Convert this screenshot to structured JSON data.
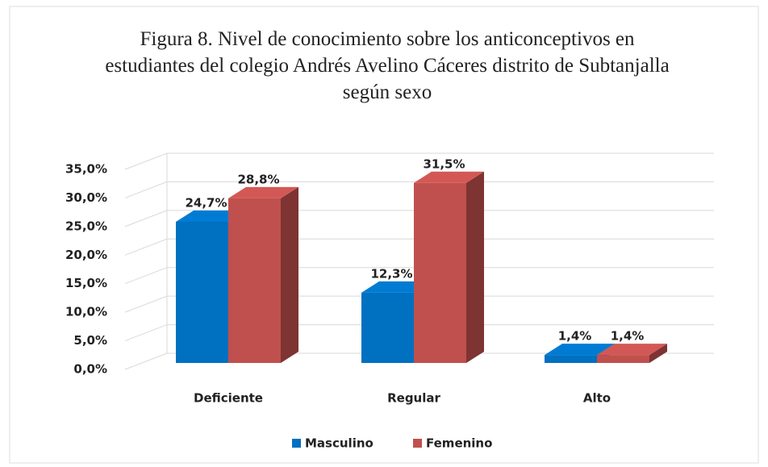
{
  "chart_data": {
    "type": "bar3d",
    "title": "Figura 8. Nivel de conocimiento sobre los anticonceptivos en estudiantes del colegio Andrés Avelino Cáceres distrito de Subtanjalla según sexo",
    "categories": [
      "Deficiente",
      "Regular",
      "Alto"
    ],
    "series": [
      {
        "name": "Masculino",
        "color": "#0070c0",
        "values": [
          24.7,
          12.3,
          1.4
        ],
        "value_labels": [
          "24,7%",
          "12,3%",
          "1,4%"
        ]
      },
      {
        "name": "Femenino",
        "color": "#c0504d",
        "values": [
          28.8,
          31.5,
          1.4
        ],
        "value_labels": [
          "28,8%",
          "31,5%",
          "1,4%"
        ]
      }
    ],
    "ylim": [
      0,
      35
    ],
    "yticks": [
      {
        "value": 0,
        "label": "0,0%"
      },
      {
        "value": 5,
        "label": "5,0%"
      },
      {
        "value": 10,
        "label": "10,0%"
      },
      {
        "value": 15,
        "label": "15,0%"
      },
      {
        "value": 20,
        "label": "20,0%"
      },
      {
        "value": 25,
        "label": "25,0%"
      },
      {
        "value": 30,
        "label": "30,0%"
      },
      {
        "value": 35,
        "label": "35,0%"
      }
    ],
    "grid": true,
    "legend": "bottom"
  }
}
